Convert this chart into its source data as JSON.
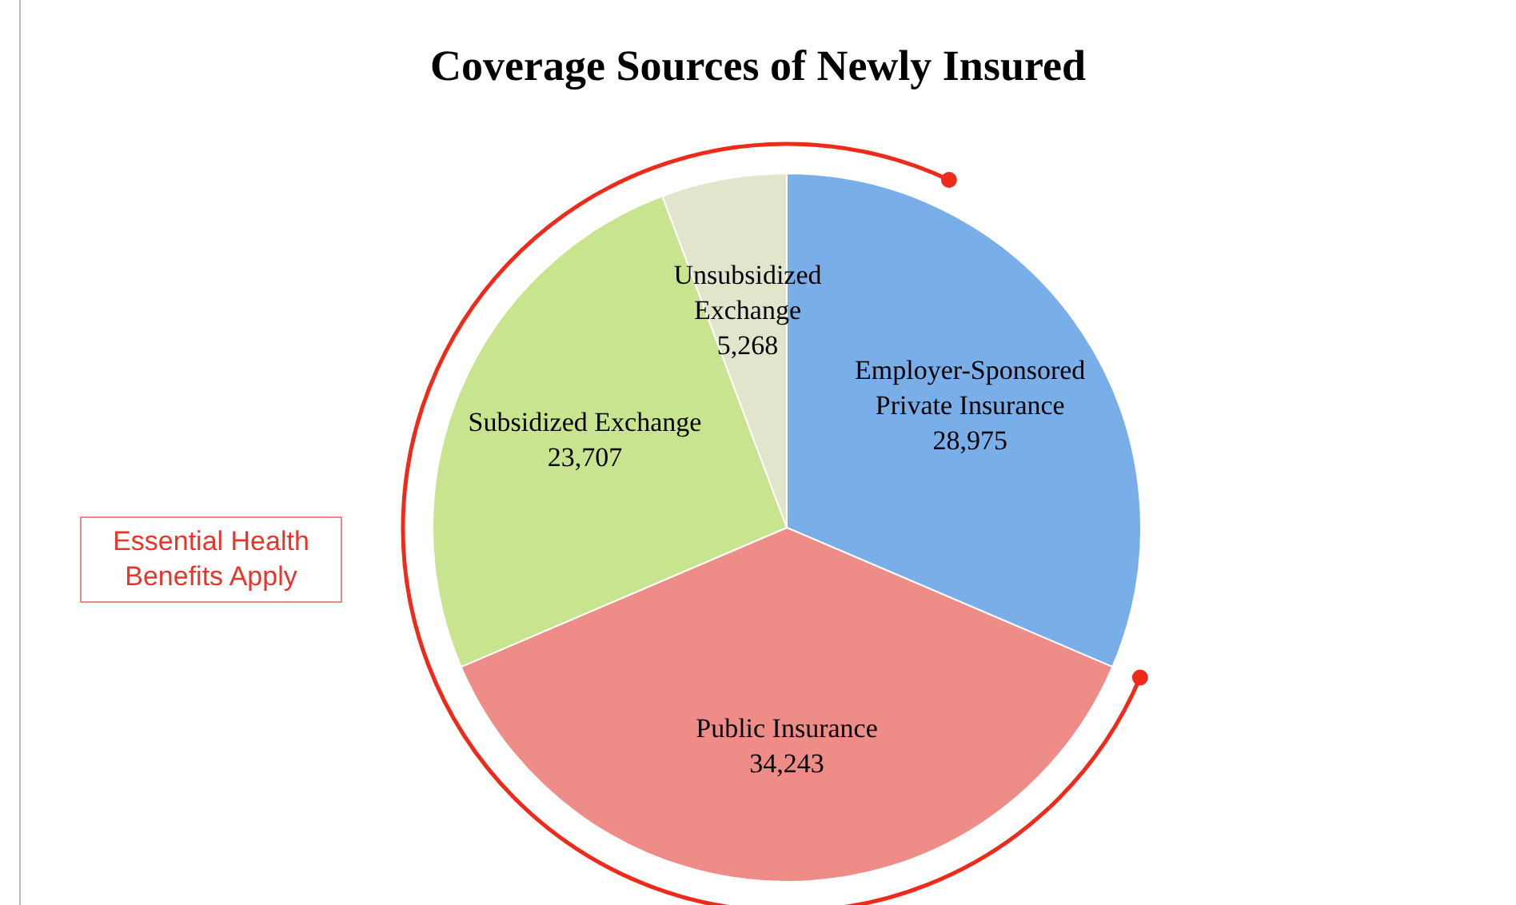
{
  "chart_data": {
    "type": "pie",
    "title": "Coverage Sources of Newly Insured",
    "categories": [
      "Employer-Sponsored\nPrivate Insurance",
      "Public Insurance",
      "Subsidized Exchange",
      "Unsubsidized\nExchange"
    ],
    "values": [
      28975,
      34243,
      23707,
      5268
    ],
    "colors": [
      "#79aee8",
      "#ee8c88",
      "#c8e48e",
      "#e2e5cc"
    ],
    "value_labels": [
      "28,975",
      "34,243",
      "23,707",
      "5,268"
    ],
    "legend": false,
    "annotations": [
      "Essential Health Benefits Apply"
    ]
  }
}
